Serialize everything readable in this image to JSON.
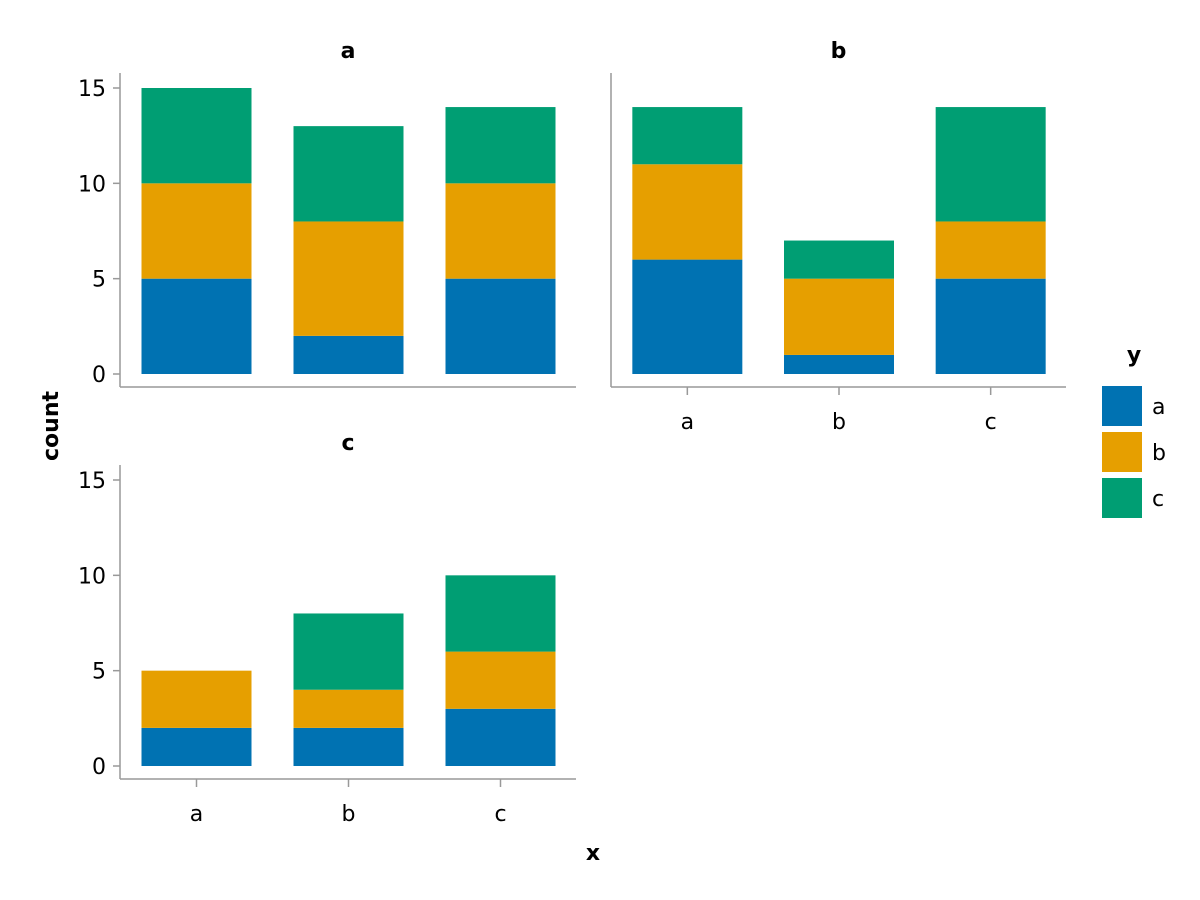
{
  "chart_data": {
    "type": "bar",
    "stacked": true,
    "xlabel": "x",
    "ylabel": "count",
    "ylim": [
      0,
      15
    ],
    "yticks": [
      0,
      5,
      10,
      15
    ],
    "categories": [
      "a",
      "b",
      "c"
    ],
    "legend": {
      "title": "y",
      "placement": "right",
      "entries": [
        {
          "label": "a",
          "color": "#0072B2"
        },
        {
          "label": "b",
          "color": "#E69F00"
        },
        {
          "label": "c",
          "color": "#009E73"
        }
      ]
    },
    "panels": [
      {
        "title": "a",
        "series": [
          {
            "name": "a",
            "values": [
              5,
              2,
              5
            ]
          },
          {
            "name": "b",
            "values": [
              5,
              6,
              5
            ]
          },
          {
            "name": "c",
            "values": [
              5,
              5,
              4
            ]
          }
        ]
      },
      {
        "title": "b",
        "series": [
          {
            "name": "a",
            "values": [
              6,
              1,
              5
            ]
          },
          {
            "name": "b",
            "values": [
              5,
              4,
              3
            ]
          },
          {
            "name": "c",
            "values": [
              3,
              2,
              6
            ]
          }
        ]
      },
      {
        "title": "c",
        "series": [
          {
            "name": "a",
            "values": [
              2,
              2,
              3
            ]
          },
          {
            "name": "b",
            "values": [
              3,
              2,
              3
            ]
          },
          {
            "name": "c",
            "values": [
              0,
              4,
              4
            ]
          }
        ]
      }
    ]
  }
}
